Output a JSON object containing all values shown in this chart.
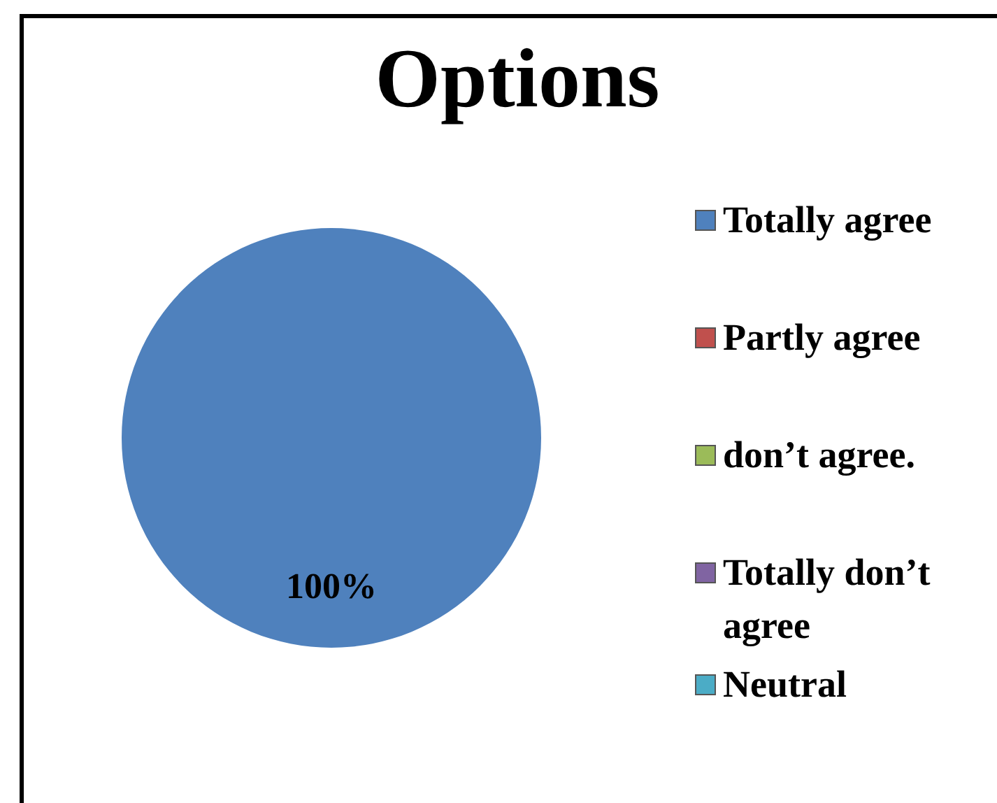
{
  "chart_data": {
    "type": "pie",
    "title": "Options",
    "categories": [
      "Totally agree",
      "Partly agree",
      "don’t  agree.",
      "Totally don’t agree",
      "Neutral"
    ],
    "values": [
      100,
      0,
      0,
      0,
      0
    ],
    "colors": [
      "#4f81bd",
      "#c0504d",
      "#9bbb59",
      "#8064a2",
      "#4bacc6"
    ],
    "value_labels": [
      "100%",
      null,
      null,
      null,
      null
    ],
    "legend": "right"
  }
}
